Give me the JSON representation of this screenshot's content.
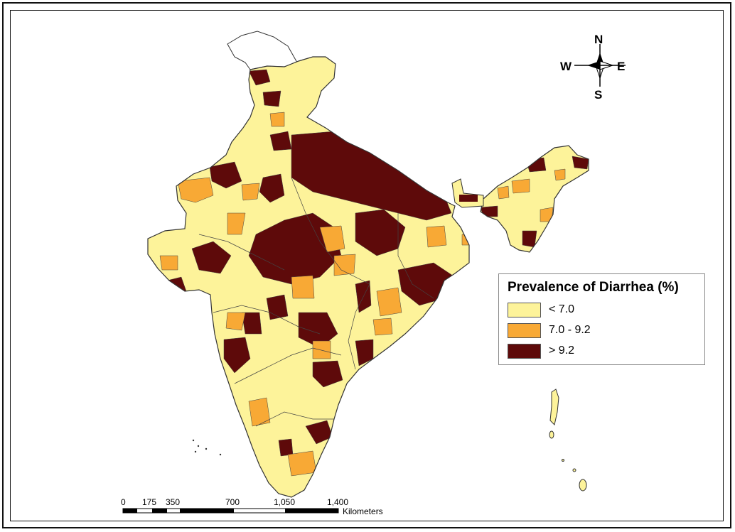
{
  "legend": {
    "title": "Prevalence of Diarrhea (%)",
    "classes": [
      {
        "label": "<  7.0",
        "color": "#fdf39a"
      },
      {
        "label": "7.0 - 9.2",
        "color": "#f8a935"
      },
      {
        "label": "> 9.2",
        "color": "#5e0a0a"
      }
    ]
  },
  "compass": {
    "north": "N",
    "south": "S",
    "east": "E",
    "west": "W"
  },
  "scale_bar": {
    "ticks": [
      "0",
      "175",
      "350",
      "700",
      "1,050",
      "1,400"
    ],
    "unit": "Kilometers"
  },
  "colors": {
    "low": "#fdf39a",
    "mid": "#f8a935",
    "high": "#5e0a0a",
    "border": "#444444",
    "nodata": "#ffffff"
  }
}
